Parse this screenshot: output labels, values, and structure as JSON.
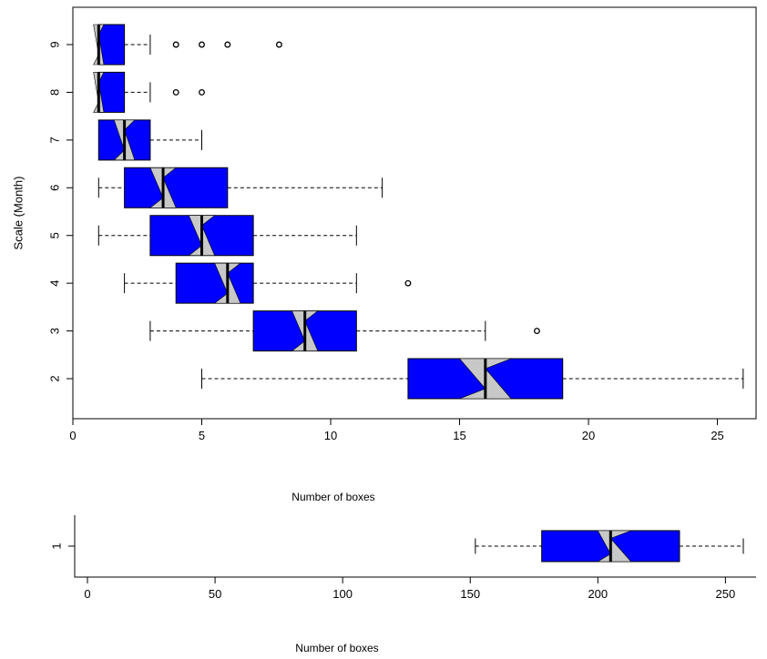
{
  "chart_data": [
    {
      "type": "boxplot",
      "orientation": "horizontal",
      "notched": true,
      "ylabel": "Scale (Month)",
      "xlabel": "Number of boxes",
      "xlim": [
        0,
        26.5
      ],
      "x_ticks": [
        0,
        5,
        10,
        15,
        20,
        25
      ],
      "categories": [
        "2",
        "3",
        "4",
        "5",
        "6",
        "7",
        "8",
        "9"
      ],
      "box_color": "#0000ff",
      "notch_color": "#c8c8c8",
      "boxes": [
        {
          "label": "2",
          "whisker_low": 5,
          "q1": 13,
          "median": 16,
          "q3": 19,
          "whisker_high": 26,
          "notch": [
            15,
            17
          ],
          "outliers": []
        },
        {
          "label": "3",
          "whisker_low": 3,
          "q1": 7,
          "median": 9,
          "q3": 11,
          "whisker_high": 16,
          "notch": [
            8.5,
            9.5
          ],
          "outliers": [
            18
          ]
        },
        {
          "label": "4",
          "whisker_low": 2,
          "q1": 4,
          "median": 6,
          "q3": 7,
          "whisker_high": 11,
          "notch": [
            5.5,
            6.5
          ],
          "outliers": [
            13
          ]
        },
        {
          "label": "5",
          "whisker_low": 1,
          "q1": 3,
          "median": 5,
          "q3": 7,
          "whisker_high": 11,
          "notch": [
            4.5,
            5.5
          ],
          "outliers": []
        },
        {
          "label": "6",
          "whisker_low": 1,
          "q1": 2,
          "median": 3.5,
          "q3": 6,
          "whisker_high": 12,
          "notch": [
            3,
            4
          ],
          "outliers": []
        },
        {
          "label": "7",
          "whisker_low": 1,
          "q1": 1,
          "median": 2,
          "q3": 3,
          "whisker_high": 5,
          "notch": [
            1.6,
            2.4
          ],
          "outliers": []
        },
        {
          "label": "8",
          "whisker_low": 1,
          "q1": 1,
          "median": 1,
          "q3": 2,
          "whisker_high": 3,
          "notch": [
            0.8,
            1.2
          ],
          "outliers": [
            4,
            5
          ]
        },
        {
          "label": "9",
          "whisker_low": 1,
          "q1": 1,
          "median": 1,
          "q3": 2,
          "whisker_high": 3,
          "notch": [
            0.8,
            1.2
          ],
          "outliers": [
            4,
            5,
            6,
            8
          ]
        }
      ]
    },
    {
      "type": "boxplot",
      "orientation": "horizontal",
      "notched": true,
      "xlabel": "Number of boxes",
      "xlim": [
        -5,
        262
      ],
      "x_ticks": [
        0,
        50,
        100,
        150,
        200,
        250
      ],
      "categories": [
        "1"
      ],
      "box_color": "#0000ff",
      "notch_color": "#c8c8c8",
      "boxes": [
        {
          "label": "1",
          "whisker_low": 152,
          "q1": 178,
          "median": 205,
          "q3": 232,
          "whisker_high": 257,
          "notch": [
            200,
            213
          ],
          "outliers": []
        }
      ]
    }
  ]
}
